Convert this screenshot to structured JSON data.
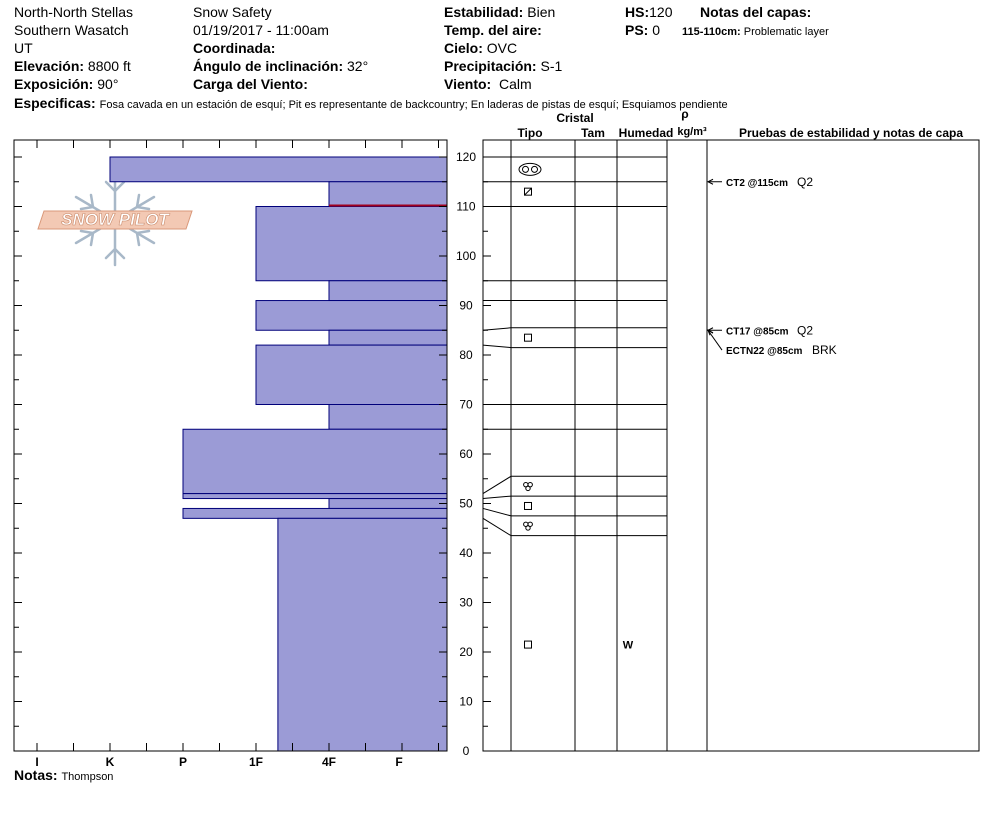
{
  "header": {
    "location": "North-North Stellas",
    "range": "Southern Wasatch",
    "state": "UT",
    "elevation_label": "Elevación:",
    "elevation_value": "8800 ft",
    "aspect_label": "Exposición:",
    "aspect_value": "90°",
    "observer": "Snow Safety",
    "datetime": "01/19/2017 - 11:00am",
    "coordinate_label": "Coordinada:",
    "slope_label": "Ángulo de inclinación:",
    "slope_value": "32°",
    "wind_load_label": "Carga del Viento:",
    "stability_label": "Estabilidad:",
    "stability_value": "Bien",
    "air_temp_label": "Temp. del aire:",
    "sky_label": "Cielo:",
    "sky_value": "OVC",
    "precip_label": "Precipitación:",
    "precip_value": "S-1",
    "wind_label": "Viento:",
    "wind_value": "Calm",
    "hs_label": "HS:",
    "hs_value": "120",
    "ps_label": "PS:",
    "ps_value": "0",
    "layer_notes_label": "Notas del capas:",
    "layer_note_range": "115-110cm:",
    "layer_note_text": "Problematic layer",
    "specifics_label": "Especificas:",
    "specifics_value": "Fosa cavada en un estación de esquí; Pit es representante de backcountry; En laderas de pistas de esquí; Esquiamos pendiente"
  },
  "footer": {
    "notes_label": "Notas:",
    "notes_value": "Thompson"
  },
  "logo": {
    "text": "SNOW PILOT"
  },
  "colors": {
    "layer_fill": "#9b9bd6",
    "layer_stroke": "#00007a",
    "problem_layer": "#a0001e"
  },
  "chart_data": {
    "type": "snow_profile",
    "hardness_scale": [
      "I",
      "K",
      "P",
      "1F",
      "4F",
      "F"
    ],
    "depth_ticks": [
      0,
      10,
      20,
      30,
      40,
      50,
      60,
      70,
      80,
      90,
      100,
      110,
      120
    ],
    "depth_range_cm": [
      0,
      120
    ],
    "layers": [
      {
        "top": 120,
        "bottom": 115,
        "hardness": 1.0
      },
      {
        "top": 115,
        "bottom": 110,
        "hardness": 4.0
      },
      {
        "top": 110,
        "bottom": 95,
        "hardness": 3.0
      },
      {
        "top": 95,
        "bottom": 91,
        "hardness": 4.0
      },
      {
        "top": 91,
        "bottom": 85,
        "hardness": 3.0
      },
      {
        "top": 85,
        "bottom": 82,
        "hardness": 4.0
      },
      {
        "top": 82,
        "bottom": 70,
        "hardness": 3.0
      },
      {
        "top": 70,
        "bottom": 65,
        "hardness": 4.0
      },
      {
        "top": 65,
        "bottom": 52,
        "hardness": 2.0
      },
      {
        "top": 52,
        "bottom": 51,
        "hardness": 2.0
      },
      {
        "top": 51,
        "bottom": 49,
        "hardness": 4.0
      },
      {
        "top": 49,
        "bottom": 47,
        "hardness": 2.0
      },
      {
        "top": 47,
        "bottom": 0,
        "hardness": 3.3
      }
    ],
    "problem_layer_depth": 110.2,
    "table_headers": {
      "crystal": "Cristal",
      "type": "Tipo",
      "size": "Tam",
      "moisture": "Humedad",
      "density_symbol": "ρ",
      "density_unit": "kg/m³",
      "tests": "Pruebas de estabilidad y notas de capa"
    },
    "table_boundaries_left": [
      120,
      115,
      110,
      95,
      91,
      85,
      82,
      70,
      65,
      52,
      51,
      49,
      47,
      0
    ],
    "table_boundaries_right": [
      120,
      115,
      110,
      95,
      91,
      85.5,
      81.5,
      70,
      65,
      55.5,
      51.5,
      47.5,
      43.5,
      0
    ],
    "crystal_symbols": [
      {
        "depth": 117.5,
        "symbol": "rounds"
      },
      {
        "depth": 113,
        "symbol": "square-x"
      },
      {
        "depth": 83.5,
        "symbol": "square"
      },
      {
        "depth": 53.5,
        "symbol": "rounds-tri"
      },
      {
        "depth": 49.5,
        "symbol": "square"
      },
      {
        "depth": 45.5,
        "symbol": "rounds-tri"
      },
      {
        "depth": 21.5,
        "symbol": "square"
      }
    ],
    "moisture_labels": [
      {
        "depth": 21.5,
        "text": "W"
      }
    ],
    "stability_tests": [
      {
        "depth": 115,
        "label_depth": 115,
        "code": "CT2 @115cm",
        "quality": "Q2"
      },
      {
        "depth": 85,
        "label_depth": 85,
        "code": "CT17 @85cm",
        "quality": "Q2"
      },
      {
        "depth": 85,
        "label_depth": 81,
        "code": "ECTN22 @85cm",
        "quality": "BRK"
      }
    ]
  }
}
